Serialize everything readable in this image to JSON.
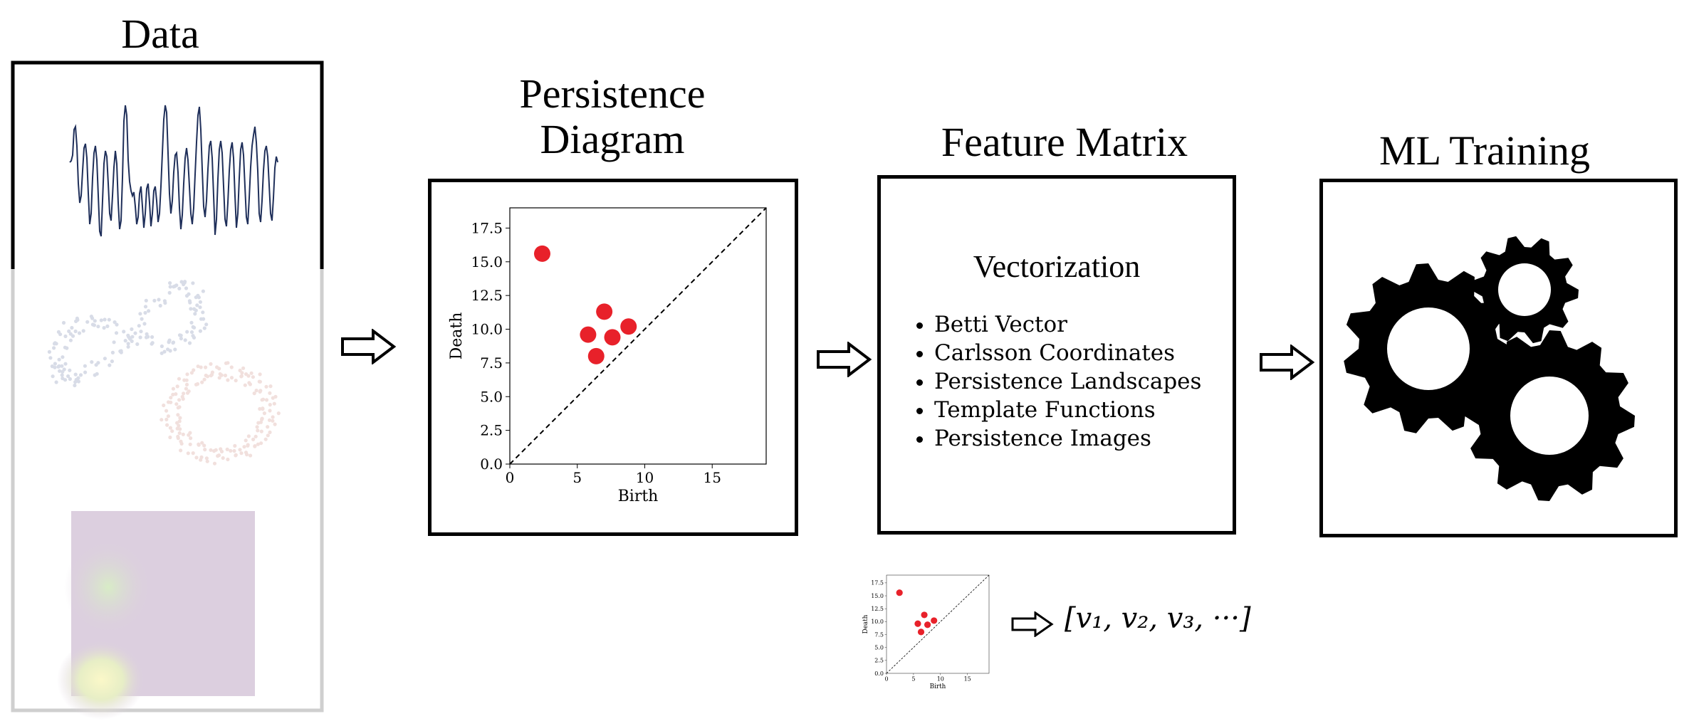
{
  "stages": {
    "data": {
      "title": "Data"
    },
    "persistence": {
      "title_line1": "Persistence",
      "title_line2": "Diagram"
    },
    "feature": {
      "title": "Feature Matrix"
    },
    "ml": {
      "title": "ML Training"
    }
  },
  "vectorization": {
    "heading": "Vectorization",
    "methods": [
      "Betti Vector",
      "Carlsson Coordinates",
      "Persistence Landscapes",
      "Template Functions",
      "Persistence Images"
    ]
  },
  "vector_output": "[v₁, v₂, v₃, ···]",
  "icons": [
    "right-arrow-icon",
    "gears-icon",
    "time-series-plot",
    "point-cloud-plot",
    "heatmap-image"
  ],
  "colors": {
    "points": "#e8212a",
    "signal": "#1f2f5a",
    "frame_dark": "#000000",
    "frame_light": "#cfcfcf"
  },
  "chart_data": {
    "type": "scatter",
    "xlabel": "Birth",
    "ylabel": "Death",
    "xlim": [
      0,
      19
    ],
    "ylim": [
      0,
      19
    ],
    "x_ticks": [
      "0",
      "5",
      "10",
      "15"
    ],
    "y_ticks": [
      "0.0",
      "2.5",
      "5.0",
      "7.5",
      "10.0",
      "12.5",
      "15.0",
      "17.5"
    ],
    "diagonal": "dashed",
    "points": [
      {
        "x": 2.4,
        "y": 15.6
      },
      {
        "x": 7.0,
        "y": 11.3
      },
      {
        "x": 8.8,
        "y": 10.2
      },
      {
        "x": 5.8,
        "y": 9.6
      },
      {
        "x": 7.6,
        "y": 9.4
      },
      {
        "x": 6.4,
        "y": 8.0
      }
    ]
  }
}
